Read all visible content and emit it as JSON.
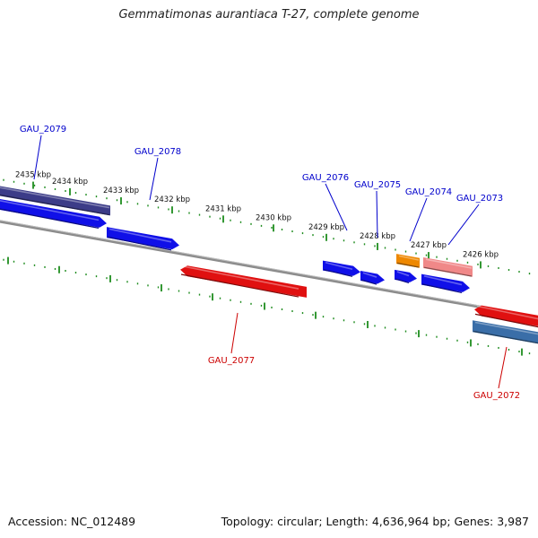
{
  "title": "Gemmatimonas aurantiaca T-27, complete genome",
  "footer": {
    "accession_label": "Accession:",
    "accession_value": "NC_012489",
    "topology_label": "Topology:",
    "topology_value": "circular",
    "length_label": "Length:",
    "length_value": "4,636,964 bp",
    "genes_label": "Genes:",
    "genes_value": "3,987"
  },
  "colors": {
    "backbone": "#8c8c8c",
    "tick": "#1e8c1e",
    "label_forward": "#0000cc",
    "label_reverse": "#cc0000",
    "gene_blue": "#1010e8",
    "gene_dark": "#3c3c88",
    "gene_red": "#e01010",
    "gene_orange": "#ee8800",
    "gene_pink": "#f08888",
    "gene_steel": "#3a6ea8"
  },
  "ticks": [
    {
      "label": "2435 kbp"
    },
    {
      "label": "2434 kbp"
    },
    {
      "label": "2433 kbp"
    },
    {
      "label": "2432 kbp"
    },
    {
      "label": "2431 kbp"
    },
    {
      "label": "2430 kbp"
    },
    {
      "label": "2429 kbp"
    },
    {
      "label": "2428 kbp"
    },
    {
      "label": "2427 kbp"
    },
    {
      "label": "2426 kbp"
    }
  ],
  "genes": [
    {
      "label": "GAU_2079",
      "strand": "forward"
    },
    {
      "label": "GAU_2078",
      "strand": "forward"
    },
    {
      "label": "GAU_2077",
      "strand": "reverse"
    },
    {
      "label": "GAU_2076",
      "strand": "forward"
    },
    {
      "label": "GAU_2075",
      "strand": "forward"
    },
    {
      "label": "GAU_2074",
      "strand": "forward"
    },
    {
      "label": "GAU_2073",
      "strand": "forward"
    },
    {
      "label": "GAU_2072",
      "strand": "reverse"
    }
  ]
}
